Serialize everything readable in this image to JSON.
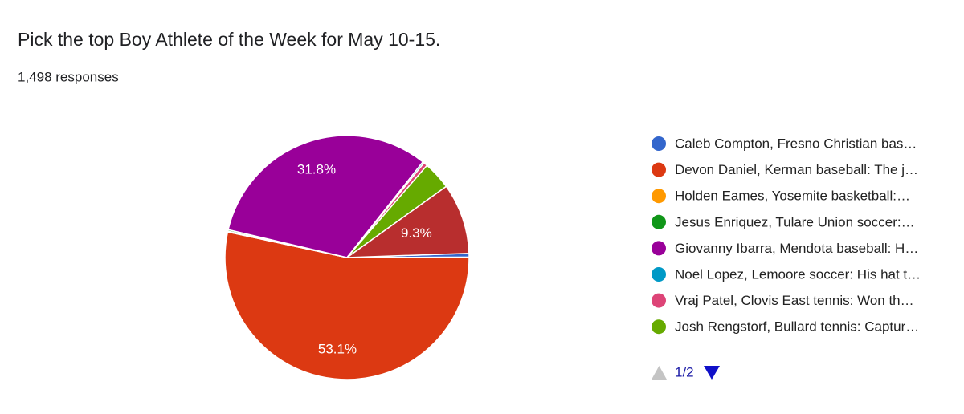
{
  "chart_data": {
    "type": "pie",
    "title": "Pick the top Boy Athlete of the Week for May 10-15.",
    "subtitle": "1,498 responses",
    "categories": [
      "Caleb Compton, Fresno Christian bas…",
      "Devon Daniel, Kerman baseball: The j…",
      "Holden Eames, Yosemite basketball:…",
      "Jesus Enriquez, Tulare Union soccer:…",
      "Giovanny Ibarra, Mendota baseball: H…",
      "Noel Lopez, Lemoore soccer: His hat t…",
      "Vraj Patel, Clovis East tennis: Won th…",
      "Josh Rengstorf, Bullard tennis: Captur…",
      null
    ],
    "values": [
      0.5,
      53.1,
      0.1,
      0.2,
      31.8,
      0.2,
      0.5,
      3.7,
      9.3
    ],
    "value_labels": [
      null,
      "53.1%",
      null,
      null,
      "31.8%",
      null,
      null,
      null,
      "9.3%"
    ],
    "colors": [
      "#3366cc",
      "#dc3912",
      "#ff9900",
      "#109618",
      "#990099",
      "#0099c6",
      "#dd4477",
      "#66aa00",
      "#b82e2e"
    ],
    "legend": "right",
    "legend_page": "1/2"
  }
}
